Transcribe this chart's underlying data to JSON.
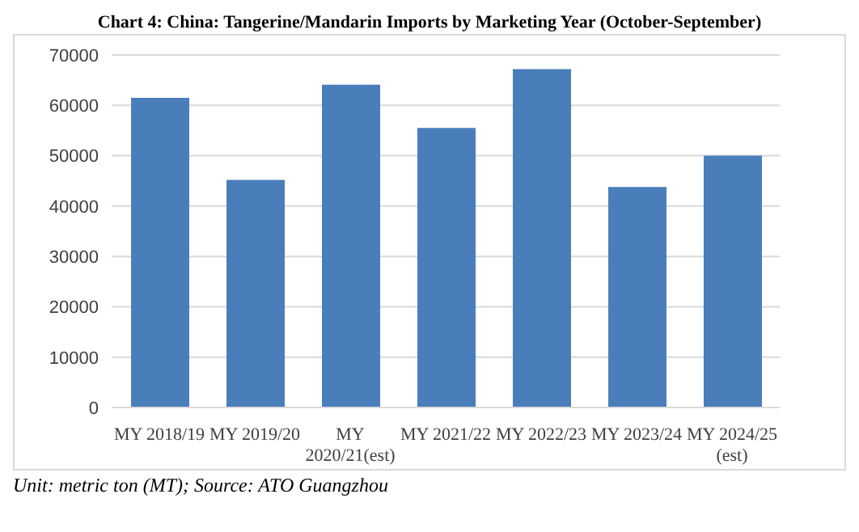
{
  "chart_data": {
    "type": "bar",
    "title": "Chart 4: China: Tangerine/Mandarin Imports by Marketing Year (October-September)",
    "categories": [
      "MY 2018/19",
      "MY 2019/20",
      "MY 2020/21(est)",
      "MY 2021/22",
      "MY 2022/23",
      "MY 2023/24",
      "MY 2024/25 (est)"
    ],
    "values": [
      61500,
      45200,
      64100,
      55500,
      67200,
      43800,
      50000
    ],
    "color": "#4a7ebb",
    "ylim": [
      0,
      70000
    ],
    "yticks": [
      0,
      10000,
      20000,
      30000,
      40000,
      50000,
      60000,
      70000
    ],
    "grid": "y",
    "legend": false,
    "annotations": [
      "Unit: metric ton (MT); Source: ATO Guangzhou"
    ]
  }
}
